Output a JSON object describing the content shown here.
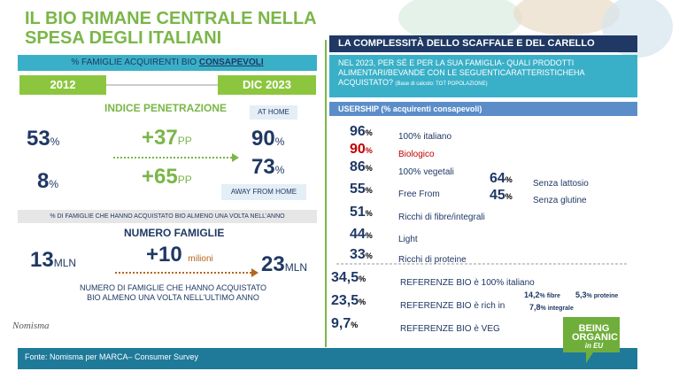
{
  "left": {
    "title": [
      "IL BIO RIMANE CENTRALE NELLA",
      "SPESA DEGLI ITALIANI"
    ],
    "subtitle": "% FAMIGLIE ACQUIRENTI BIO",
    "subtitle_emph": "CONSAPEVOLI",
    "period_start": "2012",
    "period_end": "DIC 2023",
    "indice_title": "INDICE PENETRAZIONE",
    "at_home": "AT HOME",
    "away_from_home": "AWAY FROM HOME",
    "rows": [
      {
        "start": "53",
        "start_unit": "%",
        "delta": "+37",
        "delta_unit": "PP",
        "end": "90",
        "end_unit": "%"
      },
      {
        "start": "8",
        "start_unit": "%",
        "delta": "+65",
        "delta_unit": "PP",
        "end": "73",
        "end_unit": "%"
      }
    ],
    "note1": "% DI FAMIGLIE CHE HANNO ACQUISTATO BIO ALMENO UNA VOLTA NELL'ANNO",
    "famiglie_title": "NUMERO FAMIGLIE",
    "famiglie": {
      "start": "13",
      "start_unit": "MLN",
      "delta": "+10",
      "delta_unit": "milioni",
      "end": "23",
      "end_unit": "MLN"
    },
    "note2": [
      "NUMERO DI FAMIGLIE CHE HANNO ACQUISTATO",
      "BIO ALMENO UNA VOLTA NELL'ULTIMO ANNO"
    ],
    "logo": "Nomisma"
  },
  "footer": "Fonte: Nomisma per MARCA– Consumer Survey",
  "right": {
    "header": "LA COMPLESSITÀ DELLO SCAFFALE E DEL CARELLO",
    "question": [
      "NEL 2023, PER SÉ E PER LA SUA FAMIGLIA- QUALI PRODOTTI",
      "ALIMENTARI/BEVANDE CON LE SEGUENTICARATTERISTICHEHA",
      "ACQUISTATO?"
    ],
    "base": "(Base di calcolo: TOT POPOLAZIONE)",
    "usership": "USERSHIP (% acquirenti consapevoli)",
    "items": [
      {
        "value": "96",
        "unit": "%",
        "label": "100% italiano"
      },
      {
        "value": "90",
        "unit": "%",
        "label": "Biologico"
      },
      {
        "value": "86",
        "unit": "%",
        "label": "100% vegetali"
      },
      {
        "value": "55",
        "unit": "%",
        "label": "Free From"
      },
      {
        "value": "51",
        "unit": "%",
        "label": "Ricchi di fibre/integrali"
      },
      {
        "value": "44",
        "unit": "%",
        "label": "Light"
      },
      {
        "value": "33",
        "unit": "%",
        "label": "Ricchi di proteine"
      }
    ],
    "free_from": [
      {
        "value": "64",
        "unit": "%",
        "label": "Senza lattosio"
      },
      {
        "value": "45",
        "unit": "%",
        "label": "Senza glutine"
      }
    ],
    "referenze": [
      {
        "value": "34,5",
        "unit": "%",
        "label": "REFERENZE BIO è 100% italiano"
      },
      {
        "value": "23,5",
        "unit": "%",
        "label": "REFERENZE BIO è  rich in"
      },
      {
        "value": "9,7",
        "unit": "%",
        "label": "REFERENZE BIO è VEG"
      }
    ],
    "rich_in": [
      {
        "value": "14,2",
        "unit": "%",
        "label": "fibre"
      },
      {
        "value": "5,3",
        "unit": "%",
        "label": "proteine"
      },
      {
        "value": "7,8",
        "unit": "%",
        "label": "integrale"
      }
    ],
    "logo": [
      "BEING",
      "ORGANIC",
      "in EU"
    ]
  }
}
